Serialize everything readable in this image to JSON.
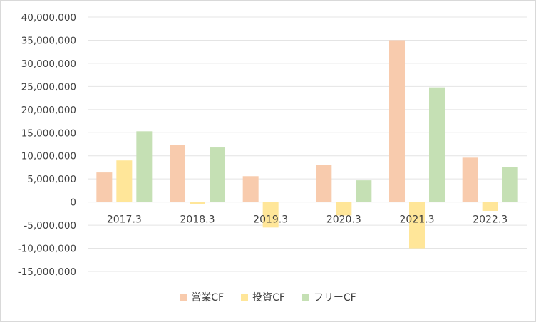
{
  "chart_data": {
    "type": "bar",
    "categories": [
      "2017.3",
      "2018.3",
      "2019.3",
      "2020.3",
      "2021.3",
      "2022.3"
    ],
    "series": [
      {
        "name": "営業CF",
        "color": "#f8cbad",
        "values": [
          6400000,
          12400000,
          5600000,
          8100000,
          35000000,
          9600000
        ]
      },
      {
        "name": "投資CF",
        "color": "#ffe699",
        "values": [
          9000000,
          -500000,
          -5500000,
          -2900000,
          -10000000,
          -1900000
        ]
      },
      {
        "name": "フリーCF",
        "color": "#c5e0b4",
        "values": [
          15300000,
          11800000,
          0,
          4700000,
          24800000,
          7500000
        ]
      }
    ],
    "ylim": [
      -15000000,
      40000000
    ],
    "ytick_step": 5000000,
    "yticks": [
      "40,000,000",
      "35,000,000",
      "30,000,000",
      "25,000,000",
      "20,000,000",
      "15,000,000",
      "10,000,000",
      "5,000,000",
      "0",
      "-5,000,000",
      "-10,000,000",
      "-15,000,000"
    ],
    "grid": true,
    "legend_position": "bottom",
    "title": "",
    "xlabel": "",
    "ylabel": ""
  }
}
